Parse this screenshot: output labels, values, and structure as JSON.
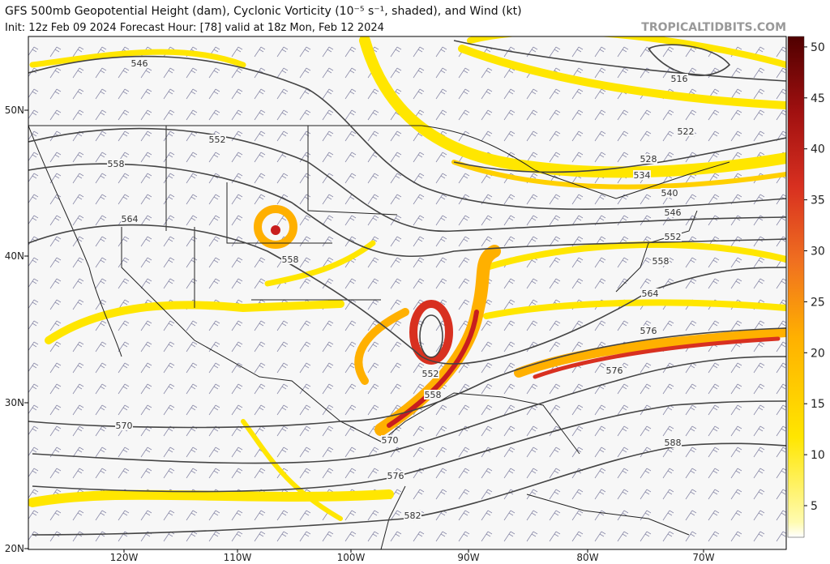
{
  "header": {
    "title": "GFS 500mb Geopotential Height (dam), Cyclonic Vorticity (10⁻⁵ s⁻¹, shaded), and Wind (kt)",
    "subtitle": "Init: 12z Feb 09 2024   Forecast Hour: [78]   valid at 18z Mon, Feb 12 2024",
    "watermark": "TROPICALTIDBITS.COM"
  },
  "map": {
    "lat_labels": [
      "50N",
      "40N",
      "30N",
      "20N"
    ],
    "lon_labels": [
      "120W",
      "110W",
      "100W",
      "90W",
      "80W",
      "70W"
    ],
    "contour_labels": [
      "546",
      "552",
      "558",
      "564",
      "558",
      "570",
      "570",
      "576",
      "582",
      "588",
      "576",
      "576",
      "564",
      "558",
      "552",
      "546",
      "540",
      "534",
      "528",
      "522",
      "516",
      "552",
      "558"
    ]
  },
  "colorbar": {
    "ticks": [
      "5",
      "10",
      "15",
      "20",
      "25",
      "30",
      "35",
      "40",
      "45",
      "50"
    ]
  }
}
